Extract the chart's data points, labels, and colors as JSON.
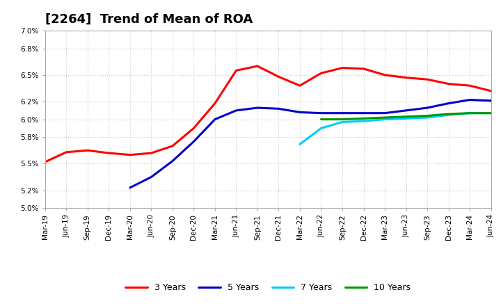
{
  "title": "[2264]  Trend of Mean of ROA",
  "ylim": [
    0.05,
    0.07
  ],
  "yticks": [
    0.05,
    0.052,
    0.055,
    0.058,
    0.06,
    0.062,
    0.065,
    0.068,
    0.07
  ],
  "ytick_labels": [
    "5.0%",
    "5.2%",
    "5.5%",
    "5.8%",
    "6.0%",
    "6.2%",
    "6.5%",
    "6.8%",
    "7.0%"
  ],
  "background_color": "#ffffff",
  "grid_color": "#cccccc",
  "xtick_labels": [
    "Mar-19",
    "Jun-19",
    "Sep-19",
    "Dec-19",
    "Mar-20",
    "Jun-20",
    "Sep-20",
    "Dec-20",
    "Mar-21",
    "Jun-21",
    "Sep-21",
    "Dec-21",
    "Mar-22",
    "Jun-22",
    "Sep-22",
    "Dec-22",
    "Mar-23",
    "Jun-23",
    "Sep-23",
    "Dec-23",
    "Mar-24",
    "Jun-24"
  ],
  "series": {
    "3 Years": {
      "color": "#ff0000",
      "x_indices": [
        0,
        1,
        2,
        3,
        4,
        5,
        6,
        7,
        8,
        9,
        10,
        11,
        12,
        13,
        14,
        15,
        16,
        17,
        18,
        19,
        20,
        21
      ],
      "values": [
        0.0552,
        0.0563,
        0.0565,
        0.0562,
        0.056,
        0.0562,
        0.057,
        0.059,
        0.0618,
        0.0655,
        0.066,
        0.0648,
        0.0638,
        0.0652,
        0.0658,
        0.0657,
        0.065,
        0.0647,
        0.0645,
        0.064,
        0.0638,
        0.0632
      ]
    },
    "5 Years": {
      "color": "#0000cc",
      "x_indices": [
        4,
        5,
        6,
        7,
        8,
        9,
        10,
        11,
        12,
        13,
        14,
        15,
        16,
        17,
        18,
        19,
        20,
        21
      ],
      "values": [
        0.0523,
        0.0535,
        0.0553,
        0.0575,
        0.06,
        0.061,
        0.0613,
        0.0612,
        0.0608,
        0.0607,
        0.0607,
        0.0607,
        0.0607,
        0.061,
        0.0613,
        0.0618,
        0.0622,
        0.0621
      ]
    },
    "7 Years": {
      "color": "#00ccff",
      "x_indices": [
        12,
        13,
        14,
        15,
        16,
        17,
        18,
        19,
        20,
        21
      ],
      "values": [
        0.0572,
        0.059,
        0.0597,
        0.0598,
        0.06,
        0.0601,
        0.0602,
        0.0605,
        0.0607,
        0.0607
      ]
    },
    "10 Years": {
      "color": "#009900",
      "x_indices": [
        13,
        14,
        15,
        16,
        17,
        18,
        19,
        20,
        21
      ],
      "values": [
        0.06,
        0.06,
        0.0601,
        0.0602,
        0.0603,
        0.0604,
        0.0606,
        0.0607,
        0.0607
      ]
    }
  },
  "title_fontsize": 13,
  "tick_fontsize": 7.5,
  "legend_fontsize": 9,
  "line_width": 2.2
}
